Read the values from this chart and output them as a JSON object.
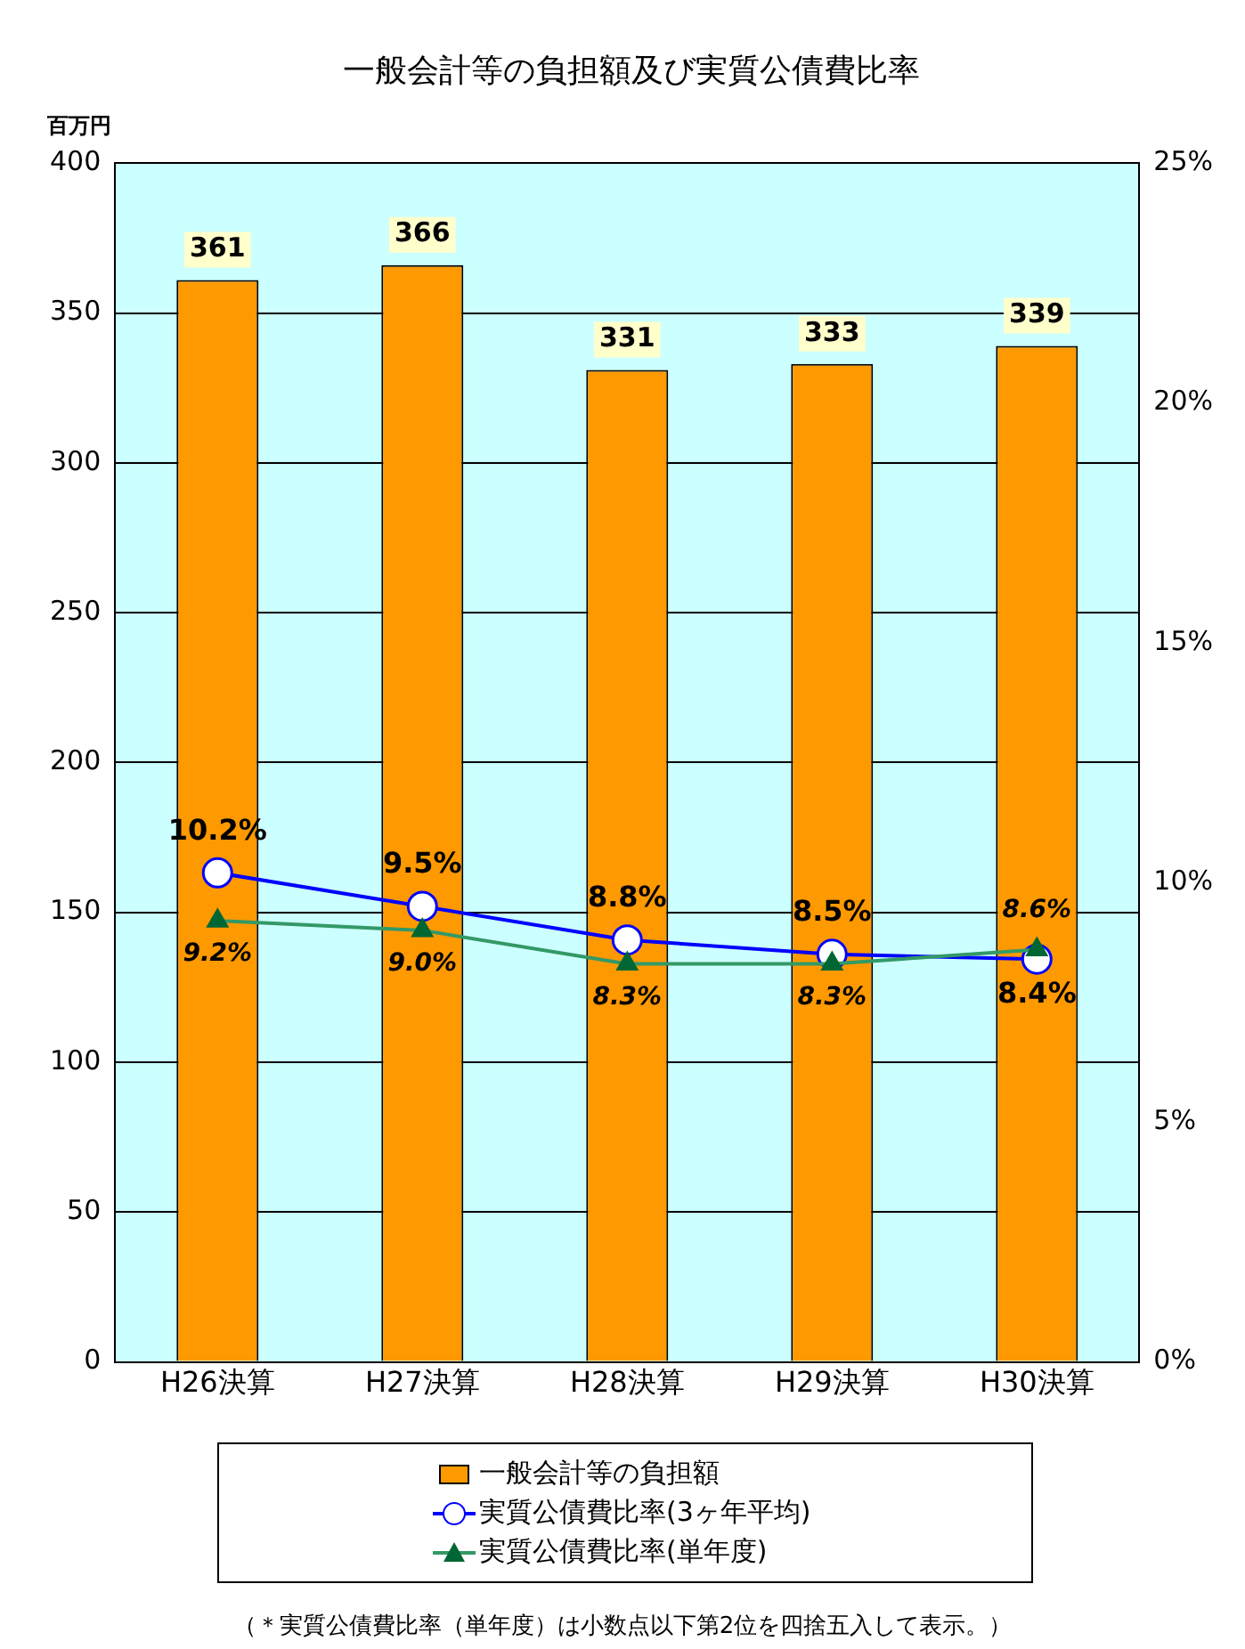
{
  "chart_data": {
    "type": "bar",
    "title": "一般会計等の負担額及び実質公債費比率",
    "ylabel": "百万円",
    "categories": [
      "H26決算",
      "H27決算",
      "H28決算",
      "H29決算",
      "H30決算"
    ],
    "series": [
      {
        "name": "一般会計等の負担額",
        "color": "#ff9900",
        "values": [
          361,
          366,
          331,
          333,
          339
        ],
        "value_labels": [
          "361",
          "366",
          "331",
          "333",
          "339"
        ]
      },
      {
        "name": "実質公債費比率(3ヶ年平均)",
        "type": "line",
        "axis": "y2",
        "color": "#0000ff",
        "marker": "circle",
        "values": [
          10.2,
          9.5,
          8.8,
          8.5,
          8.4
        ],
        "value_labels": [
          "10.2%",
          "9.5%",
          "8.8%",
          "8.5%",
          "8.4%"
        ]
      },
      {
        "name": "実質公債費比率(単年度)",
        "type": "line",
        "axis": "y2",
        "color": "#339966",
        "marker": "triangle",
        "values": [
          9.2,
          9.0,
          8.3,
          8.3,
          8.6
        ],
        "value_labels": [
          "9.2%",
          "9.0%",
          "8.3%",
          "8.3%",
          "8.6%"
        ]
      }
    ],
    "ylim": [
      0,
      400
    ],
    "yticks": [
      0,
      50,
      100,
      150,
      200,
      250,
      300,
      350,
      400
    ],
    "y2lim": [
      0,
      25
    ],
    "y2ticks": [
      {
        "value": 0,
        "label": "0%"
      },
      {
        "value": 5,
        "label": "5%"
      },
      {
        "value": 10,
        "label": "10%"
      },
      {
        "value": 15,
        "label": "15%"
      },
      {
        "value": 20,
        "label": "20%"
      },
      {
        "value": 25,
        "label": "25%"
      }
    ],
    "grid": "y",
    "legend": "bottom",
    "annotations": [
      "（＊実質公債費比率（単年度）は小数点以下第2位を四捨五入して表示。）"
    ]
  }
}
